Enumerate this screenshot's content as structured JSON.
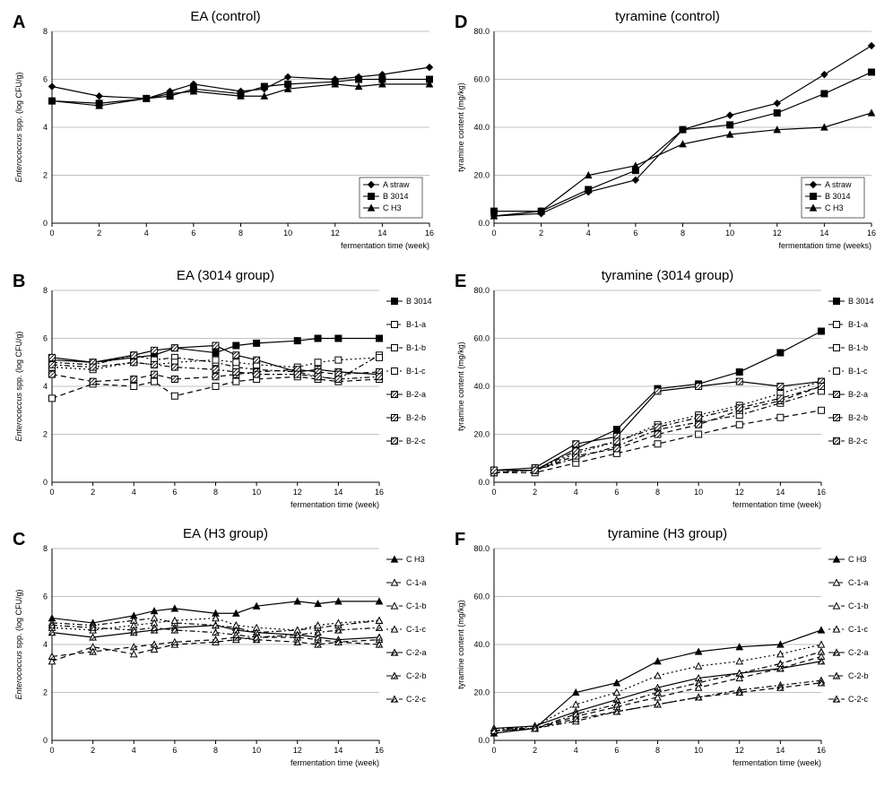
{
  "global": {
    "background": "#ffffff",
    "axis_color": "#000000",
    "grid_color": "#808080",
    "text_color": "#000000",
    "marker_fill_solid": "#000000",
    "marker_fill_open": "#ffffff",
    "font_family": "Arial",
    "title_fontsize": 15,
    "panel_label_fontsize": 20,
    "axis_label_fontsize": 10,
    "tick_fontsize": 9,
    "legend_fontsize": 9,
    "line_width": 1.2
  },
  "x_axis": {
    "min": 0,
    "max": 16,
    "tick_step": 2,
    "label": "fermentation time (week)",
    "label_alt": "fermentation time (weeks)"
  },
  "y_axis_ea": {
    "min": 0,
    "max": 8,
    "tick_step": 2,
    "label": "Enterococcus  spp. (log CFU/g)"
  },
  "y_axis_tyr": {
    "min": 0,
    "max": 80,
    "tick_step": 20,
    "label": "tyramine content (mg/kg)"
  },
  "markers": {
    "diamond_filled": {
      "shape": "diamond",
      "fill": "#000000"
    },
    "square_filled": {
      "shape": "square",
      "fill": "#000000"
    },
    "triangle_filled": {
      "shape": "triangle",
      "fill": "#000000"
    },
    "square_open": {
      "shape": "square",
      "fill": "#ffffff"
    },
    "triangle_open": {
      "shape": "triangle",
      "fill": "#ffffff"
    },
    "square_hatch": {
      "shape": "square",
      "fill": "hatch"
    },
    "triangle_hatch": {
      "shape": "triangle",
      "fill": "hatch"
    }
  },
  "panels": {
    "A": {
      "label": "A",
      "title": "EA (control)",
      "y": "ea",
      "xlabel": "fermentation time (week)",
      "legend_pos": "inside-br",
      "series": [
        {
          "name": "A straw",
          "marker": "diamond_filled",
          "dash": "solid",
          "x": [
            0,
            2,
            4,
            5,
            6,
            8,
            9,
            10,
            12,
            13,
            14,
            16
          ],
          "y": [
            5.7,
            5.3,
            5.2,
            5.5,
            5.8,
            5.5,
            5.6,
            6.1,
            6.0,
            6.1,
            6.2,
            6.5
          ]
        },
        {
          "name": "B 3014",
          "marker": "square_filled",
          "dash": "solid",
          "x": [
            0,
            2,
            4,
            5,
            6,
            8,
            9,
            10,
            12,
            13,
            14,
            16
          ],
          "y": [
            5.1,
            5.0,
            5.2,
            5.3,
            5.6,
            5.4,
            5.7,
            5.8,
            5.9,
            6.0,
            6.0,
            6.0
          ]
        },
        {
          "name": "C H3",
          "marker": "triangle_filled",
          "dash": "solid",
          "x": [
            0,
            2,
            4,
            5,
            6,
            8,
            9,
            10,
            12,
            13,
            14,
            16
          ],
          "y": [
            5.1,
            4.9,
            5.2,
            5.4,
            5.5,
            5.3,
            5.3,
            5.6,
            5.8,
            5.7,
            5.8,
            5.8
          ]
        }
      ]
    },
    "B": {
      "label": "B",
      "title": "EA (3014 group)",
      "y": "ea",
      "xlabel": "fermentation time (week)",
      "legend_pos": "outside-right",
      "series": [
        {
          "name": "B 3014",
          "marker": "square_filled",
          "dash": "solid",
          "x": [
            0,
            2,
            4,
            5,
            6,
            8,
            9,
            10,
            12,
            13,
            14,
            16
          ],
          "y": [
            5.1,
            5.0,
            5.2,
            5.3,
            5.6,
            5.4,
            5.7,
            5.8,
            5.9,
            6.0,
            6.0,
            6.0
          ]
        },
        {
          "name": "B-1-a",
          "marker": "square_open",
          "dash": "dash",
          "x": [
            0,
            2,
            4,
            5,
            6,
            8,
            9,
            10,
            12,
            13,
            14,
            16
          ],
          "y": [
            3.5,
            4.1,
            4.0,
            4.2,
            3.6,
            4.0,
            4.2,
            4.3,
            4.4,
            4.3,
            4.2,
            4.3
          ]
        },
        {
          "name": "B-1-b",
          "marker": "square_open",
          "dash": "dashdot",
          "x": [
            0,
            2,
            4,
            5,
            6,
            8,
            9,
            10,
            12,
            13,
            14,
            16
          ],
          "y": [
            5.0,
            4.9,
            5.3,
            5.1,
            5.2,
            5.0,
            4.8,
            4.7,
            4.6,
            4.4,
            4.3,
            5.3
          ]
        },
        {
          "name": "B-1-c",
          "marker": "square_open",
          "dash": "dot",
          "x": [
            0,
            2,
            4,
            5,
            6,
            8,
            9,
            10,
            12,
            13,
            14,
            16
          ],
          "y": [
            4.8,
            4.7,
            5.0,
            4.9,
            5.0,
            5.1,
            5.0,
            4.9,
            4.8,
            5.0,
            5.1,
            5.2
          ]
        },
        {
          "name": "B-2-a",
          "marker": "square_hatch",
          "dash": "solid",
          "x": [
            0,
            2,
            4,
            5,
            6,
            8,
            9,
            10,
            12,
            13,
            14,
            16
          ],
          "y": [
            5.2,
            5.0,
            5.3,
            5.5,
            5.6,
            5.7,
            5.3,
            5.1,
            4.6,
            4.7,
            4.6,
            4.5
          ]
        },
        {
          "name": "B-2-b",
          "marker": "square_hatch",
          "dash": "dash",
          "x": [
            0,
            2,
            4,
            5,
            6,
            8,
            9,
            10,
            12,
            13,
            14,
            16
          ],
          "y": [
            4.5,
            4.2,
            4.3,
            4.5,
            4.3,
            4.4,
            4.5,
            4.6,
            4.7,
            4.6,
            4.5,
            4.6
          ]
        },
        {
          "name": "B-2-c",
          "marker": "square_hatch",
          "dash": "dashdot",
          "x": [
            0,
            2,
            4,
            5,
            6,
            8,
            9,
            10,
            12,
            13,
            14,
            16
          ],
          "y": [
            4.9,
            4.8,
            5.0,
            4.9,
            4.8,
            4.7,
            4.6,
            4.5,
            4.5,
            4.4,
            4.3,
            4.4
          ]
        }
      ]
    },
    "C": {
      "label": "C",
      "title": "EA (H3 group)",
      "y": "ea",
      "xlabel": "fermentation time (week)",
      "legend_pos": "outside-right",
      "series": [
        {
          "name": "C H3",
          "marker": "triangle_filled",
          "dash": "solid",
          "x": [
            0,
            2,
            4,
            5,
            6,
            8,
            9,
            10,
            12,
            13,
            14,
            16
          ],
          "y": [
            5.1,
            4.9,
            5.2,
            5.4,
            5.5,
            5.3,
            5.3,
            5.6,
            5.8,
            5.7,
            5.8,
            5.8
          ]
        },
        {
          "name": "C-1-a",
          "marker": "triangle_open",
          "dash": "dash",
          "x": [
            0,
            2,
            4,
            5,
            6,
            8,
            9,
            10,
            12,
            13,
            14,
            16
          ],
          "y": [
            3.3,
            3.9,
            3.6,
            3.8,
            4.0,
            4.1,
            4.2,
            4.3,
            4.3,
            4.2,
            4.1,
            4.2
          ]
        },
        {
          "name": "C-1-b",
          "marker": "triangle_open",
          "dash": "dashdot",
          "x": [
            0,
            2,
            4,
            5,
            6,
            8,
            9,
            10,
            12,
            13,
            14,
            16
          ],
          "y": [
            4.9,
            4.8,
            5.0,
            5.1,
            4.9,
            4.8,
            4.7,
            4.5,
            4.6,
            4.7,
            4.8,
            5.0
          ]
        },
        {
          "name": "C-1-c",
          "marker": "triangle_open",
          "dash": "dot",
          "x": [
            0,
            2,
            4,
            5,
            6,
            8,
            9,
            10,
            12,
            13,
            14,
            16
          ],
          "y": [
            4.7,
            4.6,
            4.8,
            4.9,
            5.0,
            5.1,
            4.8,
            4.7,
            4.6,
            4.8,
            4.9,
            5.0
          ]
        },
        {
          "name": "C-2-a",
          "marker": "triangle_hatch",
          "dash": "solid",
          "x": [
            0,
            2,
            4,
            5,
            6,
            8,
            9,
            10,
            12,
            13,
            14,
            16
          ],
          "y": [
            4.5,
            4.3,
            4.5,
            4.6,
            4.7,
            4.8,
            4.6,
            4.5,
            4.4,
            4.3,
            4.2,
            4.3
          ]
        },
        {
          "name": "C-2-b",
          "marker": "triangle_hatch",
          "dash": "dash",
          "x": [
            0,
            2,
            4,
            5,
            6,
            8,
            9,
            10,
            12,
            13,
            14,
            16
          ],
          "y": [
            3.5,
            3.7,
            3.9,
            4.0,
            4.1,
            4.2,
            4.3,
            4.2,
            4.1,
            4.0,
            4.1,
            4.0
          ]
        },
        {
          "name": "C-2-c",
          "marker": "triangle_hatch",
          "dash": "dashdot",
          "x": [
            0,
            2,
            4,
            5,
            6,
            8,
            9,
            10,
            12,
            13,
            14,
            16
          ],
          "y": [
            4.8,
            4.7,
            4.6,
            4.7,
            4.6,
            4.5,
            4.4,
            4.3,
            4.4,
            4.5,
            4.6,
            4.7
          ]
        }
      ]
    },
    "D": {
      "label": "D",
      "title": "tyramine (control)",
      "y": "tyr",
      "xlabel": "fermentation time (weeks)",
      "legend_pos": "inside-br",
      "series": [
        {
          "name": "A straw",
          "marker": "diamond_filled",
          "dash": "solid",
          "x": [
            0,
            2,
            4,
            6,
            8,
            10,
            12,
            14,
            16
          ],
          "y": [
            3,
            4,
            13,
            18,
            39,
            45,
            50,
            62,
            74
          ]
        },
        {
          "name": "B 3014",
          "marker": "square_filled",
          "dash": "solid",
          "x": [
            0,
            2,
            4,
            6,
            8,
            10,
            12,
            14,
            16
          ],
          "y": [
            5,
            5,
            14,
            22,
            39,
            41,
            46,
            54,
            63
          ]
        },
        {
          "name": "C H3",
          "marker": "triangle_filled",
          "dash": "solid",
          "x": [
            0,
            2,
            4,
            6,
            8,
            10,
            12,
            14,
            16
          ],
          "y": [
            3,
            5,
            20,
            24,
            33,
            37,
            39,
            40,
            46
          ]
        }
      ]
    },
    "E": {
      "label": "E",
      "title": "tyramine (3014 group)",
      "y": "tyr",
      "xlabel": "fermentation time (week)",
      "legend_pos": "outside-right",
      "series": [
        {
          "name": "B 3014",
          "marker": "square_filled",
          "dash": "solid",
          "x": [
            0,
            2,
            4,
            6,
            8,
            10,
            12,
            14,
            16
          ],
          "y": [
            5,
            5,
            14,
            22,
            39,
            41,
            46,
            54,
            63
          ]
        },
        {
          "name": "B-1-a",
          "marker": "square_open",
          "dash": "dash",
          "x": [
            0,
            2,
            4,
            6,
            8,
            10,
            12,
            14,
            16
          ],
          "y": [
            4,
            4,
            8,
            12,
            16,
            20,
            24,
            27,
            30
          ]
        },
        {
          "name": "B-1-b",
          "marker": "square_open",
          "dash": "dashdot",
          "x": [
            0,
            2,
            4,
            6,
            8,
            10,
            12,
            14,
            16
          ],
          "y": [
            5,
            5,
            10,
            15,
            22,
            25,
            28,
            33,
            38
          ]
        },
        {
          "name": "B-1-c",
          "marker": "square_open",
          "dash": "dot",
          "x": [
            0,
            2,
            4,
            6,
            8,
            10,
            12,
            14,
            16
          ],
          "y": [
            4,
            5,
            12,
            17,
            24,
            28,
            32,
            37,
            42
          ]
        },
        {
          "name": "B-2-a",
          "marker": "square_hatch",
          "dash": "solid",
          "x": [
            0,
            2,
            4,
            6,
            8,
            10,
            12,
            14,
            16
          ],
          "y": [
            5,
            6,
            16,
            19,
            38,
            40,
            42,
            40,
            42
          ]
        },
        {
          "name": "B-2-b",
          "marker": "square_hatch",
          "dash": "dash",
          "x": [
            0,
            2,
            4,
            6,
            8,
            10,
            12,
            14,
            16
          ],
          "y": [
            4,
            5,
            11,
            14,
            20,
            24,
            30,
            34,
            40
          ]
        },
        {
          "name": "B-2-c",
          "marker": "square_hatch",
          "dash": "dashdot",
          "x": [
            0,
            2,
            4,
            6,
            8,
            10,
            12,
            14,
            16
          ],
          "y": [
            5,
            5,
            13,
            17,
            23,
            27,
            31,
            35,
            40
          ]
        }
      ]
    },
    "F": {
      "label": "F",
      "title": "tyramine (H3 group)",
      "y": "tyr",
      "xlabel": "fermentation time (week)",
      "legend_pos": "outside-right",
      "series": [
        {
          "name": "C H3",
          "marker": "triangle_filled",
          "dash": "solid",
          "x": [
            0,
            2,
            4,
            6,
            8,
            10,
            12,
            14,
            16
          ],
          "y": [
            3,
            5,
            20,
            24,
            33,
            37,
            39,
            40,
            46
          ]
        },
        {
          "name": "C-1-a",
          "marker": "triangle_open",
          "dash": "dash",
          "x": [
            0,
            2,
            4,
            6,
            8,
            10,
            12,
            14,
            16
          ],
          "y": [
            4,
            5,
            10,
            14,
            18,
            22,
            26,
            30,
            35
          ]
        },
        {
          "name": "C-1-b",
          "marker": "triangle_open",
          "dash": "dashdot",
          "x": [
            0,
            2,
            4,
            6,
            8,
            10,
            12,
            14,
            16
          ],
          "y": [
            5,
            5,
            8,
            12,
            15,
            18,
            21,
            23,
            25
          ]
        },
        {
          "name": "C-1-c",
          "marker": "triangle_open",
          "dash": "dot",
          "x": [
            0,
            2,
            4,
            6,
            8,
            10,
            12,
            14,
            16
          ],
          "y": [
            4,
            6,
            15,
            20,
            27,
            31,
            33,
            36,
            40
          ]
        },
        {
          "name": "C-2-a",
          "marker": "triangle_hatch",
          "dash": "solid",
          "x": [
            0,
            2,
            4,
            6,
            8,
            10,
            12,
            14,
            16
          ],
          "y": [
            5,
            6,
            12,
            17,
            22,
            26,
            28,
            30,
            33
          ]
        },
        {
          "name": "C-2-b",
          "marker": "triangle_hatch",
          "dash": "dash",
          "x": [
            0,
            2,
            4,
            6,
            8,
            10,
            12,
            14,
            16
          ],
          "y": [
            4,
            5,
            9,
            12,
            15,
            18,
            20,
            22,
            24
          ]
        },
        {
          "name": "C-2-c",
          "marker": "triangle_hatch",
          "dash": "dashdot",
          "x": [
            0,
            2,
            4,
            6,
            8,
            10,
            12,
            14,
            16
          ],
          "y": [
            4,
            5,
            11,
            15,
            20,
            24,
            28,
            32,
            37
          ]
        }
      ]
    }
  },
  "layout_order": [
    "A",
    "D",
    "B",
    "E",
    "C",
    "F"
  ]
}
